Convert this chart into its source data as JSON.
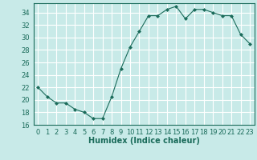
{
  "x": [
    0,
    1,
    2,
    3,
    4,
    5,
    6,
    7,
    8,
    9,
    10,
    11,
    12,
    13,
    14,
    15,
    16,
    17,
    18,
    19,
    20,
    21,
    22,
    23
  ],
  "y": [
    22,
    20.5,
    19.5,
    19.5,
    18.5,
    18,
    17,
    17,
    20.5,
    25,
    28.5,
    31,
    33.5,
    33.5,
    34.5,
    35,
    33,
    34.5,
    34.5,
    34,
    33.5,
    33.5,
    30.5,
    29
  ],
  "xlabel": "Humidex (Indice chaleur)",
  "xlim": [
    -0.5,
    23.5
  ],
  "ylim": [
    16,
    35.5
  ],
  "yticks": [
    16,
    18,
    20,
    22,
    24,
    26,
    28,
    30,
    32,
    34
  ],
  "xticks": [
    0,
    1,
    2,
    3,
    4,
    5,
    6,
    7,
    8,
    9,
    10,
    11,
    12,
    13,
    14,
    15,
    16,
    17,
    18,
    19,
    20,
    21,
    22,
    23
  ],
  "line_color": "#1a6b5a",
  "bg_color": "#c8eae8",
  "grid_color": "#ffffff",
  "label_color": "#1a6b5a",
  "tick_fontsize": 6,
  "xlabel_fontsize": 7
}
